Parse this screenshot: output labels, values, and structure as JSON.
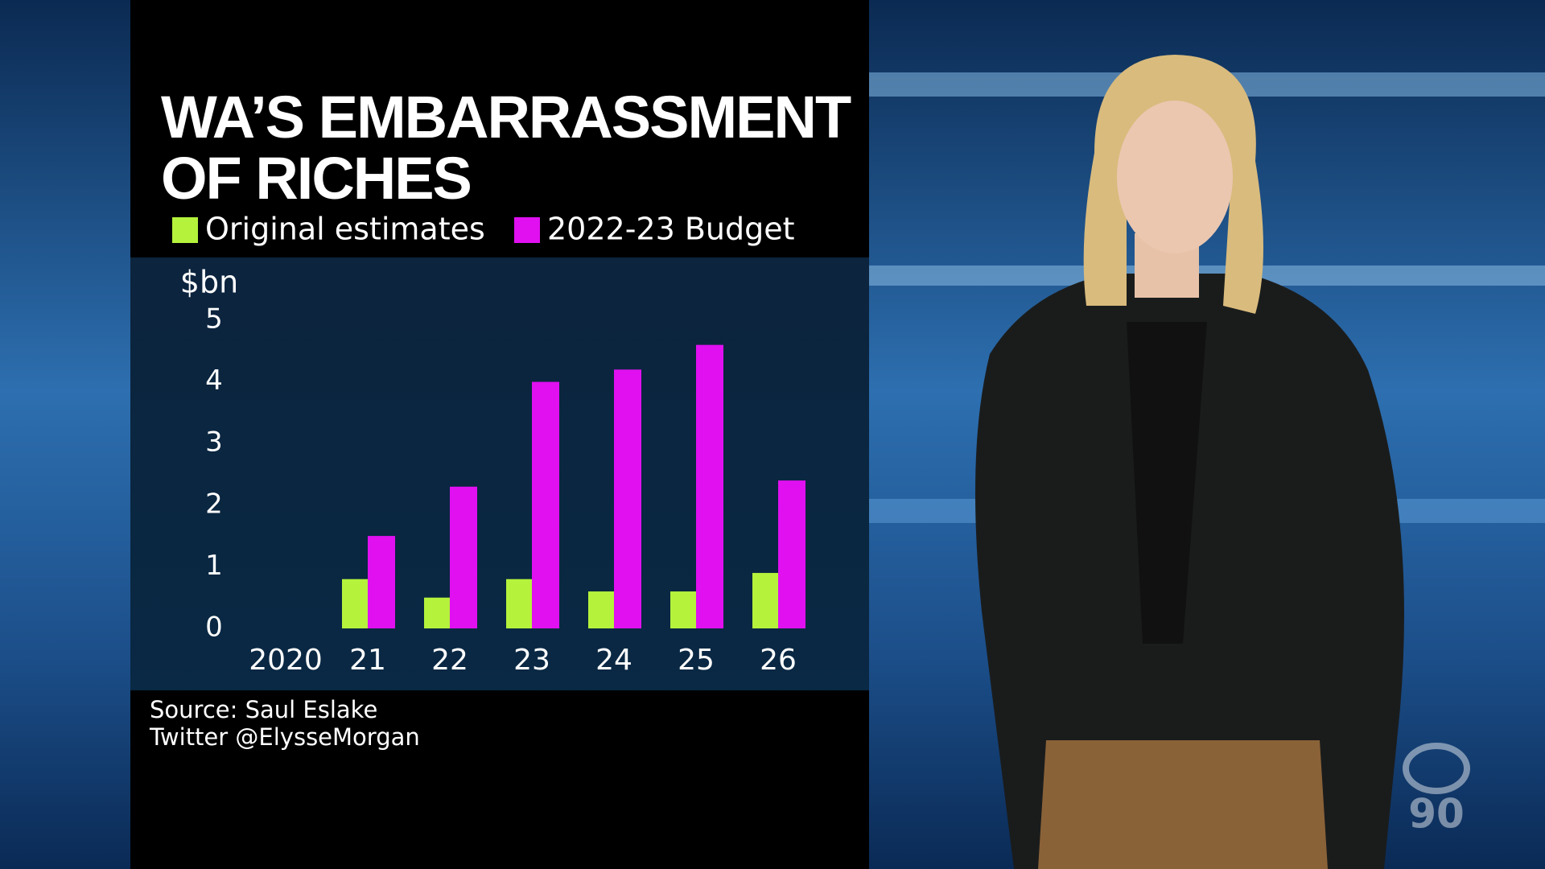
{
  "chart_data": {
    "type": "bar",
    "title": "WA’S EMBARRASSMENT OF RICHES",
    "y_label": "$bn",
    "categories": [
      "2020",
      "21",
      "22",
      "23",
      "24",
      "25",
      "26"
    ],
    "series": [
      {
        "name": "Original estimates",
        "color": "#b4f23c",
        "values": [
          null,
          0.8,
          0.5,
          0.8,
          0.6,
          0.6,
          0.9
        ]
      },
      {
        "name": "2022-23 Budget",
        "color": "#e010f0",
        "values": [
          null,
          1.5,
          2.3,
          4.0,
          4.2,
          4.6,
          2.4
        ]
      }
    ],
    "ylim": [
      0,
      5
    ],
    "yticks": [
      0,
      1,
      2,
      3,
      4,
      5
    ],
    "source": [
      "Source: Saul Eslake",
      "Twitter @ElysseMorgan"
    ]
  },
  "logo_text": "90"
}
